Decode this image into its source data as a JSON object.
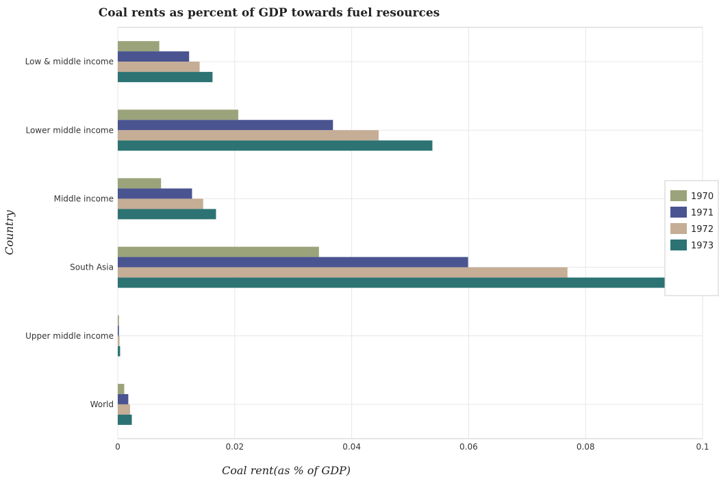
{
  "chart_data": {
    "type": "bar",
    "orientation": "horizontal",
    "title": "Coal rents as percent of GDP towards fuel resources",
    "xlabel": "Coal rent(as % of GDP)",
    "ylabel": "Country",
    "xlim": [
      0,
      0.1
    ],
    "xticks": [
      "0",
      "0.02",
      "0.04",
      "0.06",
      "0.08",
      "0.1"
    ],
    "xtick_values": [
      0,
      0.02,
      0.04,
      0.06,
      0.08,
      0.1
    ],
    "grid": true,
    "legend_position": "right",
    "categories": [
      "Low & middle income",
      "Lower middle income",
      "Middle income",
      "South Asia",
      "Upper middle income",
      "World"
    ],
    "series": [
      {
        "name": "1970",
        "color": "#9aa37a",
        "values": [
          0.0071,
          0.0206,
          0.0074,
          0.0344,
          0.0002,
          0.0011
        ]
      },
      {
        "name": "1971",
        "color": "#4a5490",
        "values": [
          0.0122,
          0.0368,
          0.0127,
          0.0599,
          0.0002,
          0.0018
        ]
      },
      {
        "name": "1972",
        "color": "#c5ad96",
        "values": [
          0.014,
          0.0446,
          0.0146,
          0.0769,
          0.0003,
          0.0021
        ]
      },
      {
        "name": "1973",
        "color": "#2d7373",
        "values": [
          0.0162,
          0.0538,
          0.0168,
          0.0966,
          0.0004,
          0.0024
        ]
      }
    ]
  }
}
